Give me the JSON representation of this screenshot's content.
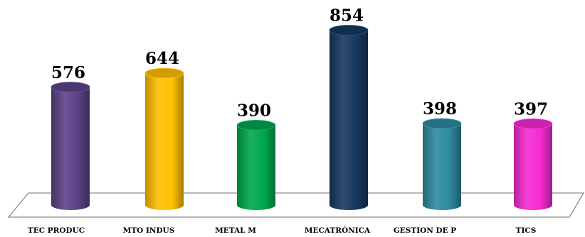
{
  "chart_data": {
    "type": "bar",
    "style": "3d-cylinder",
    "categories": [
      "TEC PRODUC",
      "MTO INDUS",
      "METAL M",
      "MECATRÓNICA",
      "GESTION DE P",
      "TICS"
    ],
    "values": [
      576,
      644,
      390,
      854,
      398,
      397
    ],
    "colors": [
      "#5b4287",
      "#ffc000",
      "#00a84f",
      "#163860",
      "#2e8aa0",
      "#f52ad2"
    ],
    "ylim": [
      0,
      900
    ],
    "legend": "none",
    "grid": false
  }
}
